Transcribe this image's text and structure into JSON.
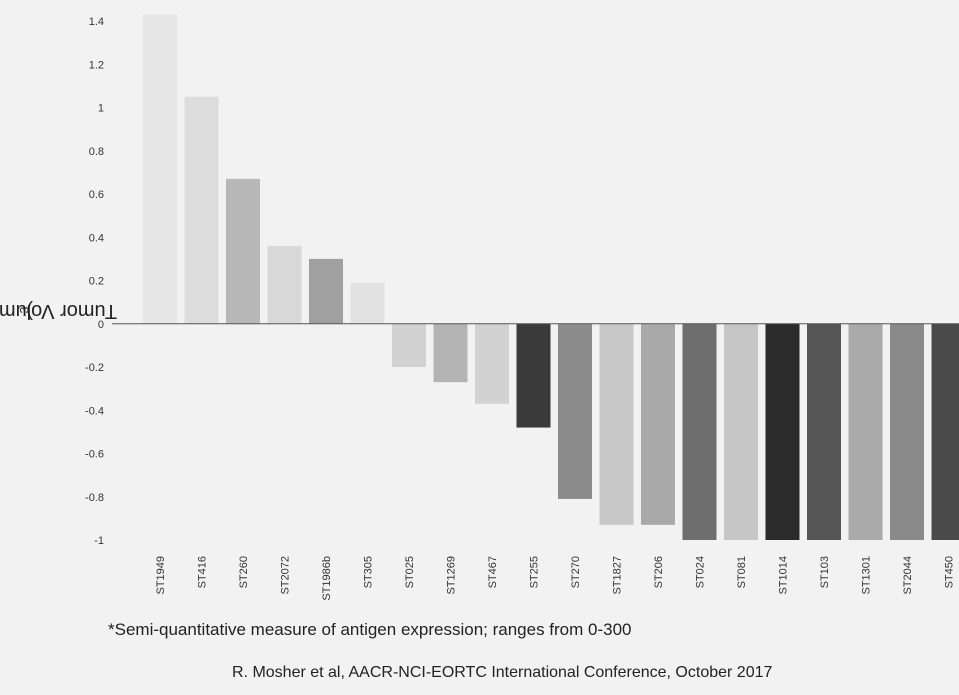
{
  "chart_data": {
    "type": "bar",
    "ylabel_prefix": "Tumor Volume (mm",
    "ylabel_sup": "3",
    "ylabel_suffix": ")",
    "xlabel": "",
    "ylim": [
      -1,
      1.4
    ],
    "yticks": [
      "1.4",
      "1.2",
      "1",
      "0.8",
      "0.6",
      "0.4",
      "0.2",
      "0",
      "-0.2",
      "-0.4",
      "-0.6",
      "-0.8",
      "-1"
    ],
    "grid": false,
    "categories": [
      "ST1949",
      "ST416",
      "ST260",
      "ST2072",
      "ST1986b",
      "ST305",
      "ST025",
      "ST1269",
      "ST467",
      "ST255",
      "ST270",
      "ST1827",
      "ST206",
      "ST024",
      "ST081",
      "ST1014",
      "ST103",
      "ST1301",
      "ST2044",
      "ST450"
    ],
    "values": [
      1.43,
      1.05,
      0.67,
      0.36,
      0.3,
      0.19,
      -0.2,
      -0.27,
      -0.37,
      -0.48,
      -0.81,
      -0.93,
      -0.93,
      -1.0,
      -1.0,
      -1.0,
      -1.0,
      -1.0,
      -1.0,
      -1.0
    ],
    "colors": [
      "#e6e6e6",
      "#dcdcdc",
      "#b8b8b8",
      "#d9d9d9",
      "#a0a0a0",
      "#e2e2e2",
      "#d2d2d2",
      "#b4b4b4",
      "#d2d2d2",
      "#3a3a3a",
      "#8c8c8c",
      "#c8c8c8",
      "#a9a9a9",
      "#6e6e6e",
      "#c6c6c6",
      "#2b2b2b",
      "#555555",
      "#aaaaaa",
      "#8a8a8a",
      "#4a4a4a"
    ]
  },
  "footnote": "*Semi-quantitative measure of antigen expression; ranges from 0-300",
  "credit": "R. Mosher et al, AACR-NCI-EORTC International Conference, October 2017"
}
